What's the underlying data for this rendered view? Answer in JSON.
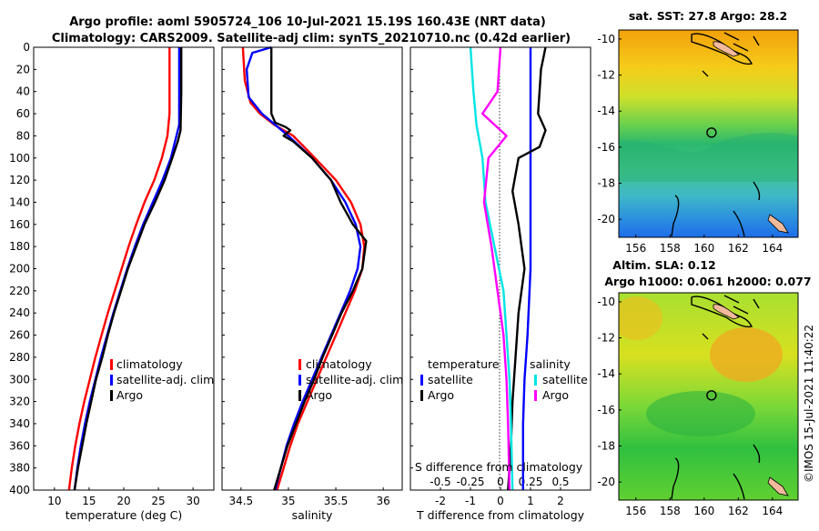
{
  "title": {
    "line1": "Argo profile: aoml 5905724_106 10-Jul-2021 15.19S 160.43E (NRT data)",
    "line2": "Climatology: CARS2009. Satellite-adj clim: synTS_20210710.nc (0.42d earlier)"
  },
  "copyright": "©IMOS 15-Jul-2021 11:40:22",
  "colors": {
    "climatology": "#ff0000",
    "satellite": "#0000ff",
    "argo": "#000000",
    "satellite_salinity": "#00e5e5",
    "argo_salinity": "#ff00ff"
  },
  "chart_data": [
    {
      "type": "line",
      "name": "temperature-profile",
      "xlabel": "temperature (deg C)",
      "xlim": [
        7,
        33
      ],
      "ylim": [
        0,
        400
      ],
      "xticks": [
        "10",
        "15",
        "20",
        "25",
        "30"
      ],
      "yticks": [
        "0",
        "20",
        "40",
        "60",
        "80",
        "100",
        "120",
        "140",
        "160",
        "180",
        "200",
        "220",
        "240",
        "260",
        "280",
        "300",
        "320",
        "340",
        "360",
        "380",
        "400"
      ],
      "legend": [
        "climatology",
        "satellite-adj. clim",
        "Argo"
      ],
      "series": [
        {
          "name": "climatology",
          "color": "#ff0000",
          "points": [
            [
              26.6,
              0
            ],
            [
              26.6,
              40
            ],
            [
              26.6,
              60
            ],
            [
              26.3,
              80
            ],
            [
              25.5,
              100
            ],
            [
              24.4,
              120
            ],
            [
              23,
              140
            ],
            [
              21.8,
              160
            ],
            [
              20.7,
              180
            ],
            [
              19.7,
              200
            ],
            [
              18.7,
              220
            ],
            [
              17.7,
              240
            ],
            [
              16.8,
              260
            ],
            [
              15.9,
              280
            ],
            [
              15.1,
              300
            ],
            [
              14.3,
              320
            ],
            [
              13.6,
              340
            ],
            [
              13,
              360
            ],
            [
              12.5,
              380
            ],
            [
              12.1,
              400
            ]
          ]
        },
        {
          "name": "satellite-adj. clim",
          "color": "#0000ff",
          "points": [
            [
              28,
              0
            ],
            [
              28,
              40
            ],
            [
              28,
              70
            ],
            [
              27.6,
              80
            ],
            [
              26.8,
              100
            ],
            [
              25.6,
              120
            ],
            [
              24.2,
              140
            ],
            [
              22.8,
              160
            ],
            [
              21.6,
              180
            ],
            [
              20.5,
              200
            ],
            [
              19.5,
              220
            ],
            [
              18.5,
              240
            ],
            [
              17.6,
              260
            ],
            [
              16.7,
              280
            ],
            [
              15.9,
              300
            ],
            [
              15.1,
              320
            ],
            [
              14.4,
              340
            ],
            [
              13.8,
              360
            ],
            [
              13.3,
              380
            ],
            [
              12.9,
              400
            ]
          ]
        },
        {
          "name": "Argo",
          "color": "#000000",
          "points": [
            [
              28.3,
              0
            ],
            [
              28.3,
              40
            ],
            [
              28.2,
              75
            ],
            [
              27.8,
              85
            ],
            [
              27,
              100
            ],
            [
              25.9,
              120
            ],
            [
              24.5,
              140
            ],
            [
              23,
              160
            ],
            [
              21.8,
              180
            ],
            [
              20.6,
              200
            ],
            [
              19.6,
              220
            ],
            [
              18.6,
              240
            ],
            [
              17.7,
              260
            ],
            [
              16.9,
              280
            ],
            [
              16,
              300
            ],
            [
              15.3,
              320
            ],
            [
              14.6,
              340
            ],
            [
              14,
              360
            ],
            [
              13.4,
              380
            ],
            [
              12.9,
              400
            ]
          ]
        }
      ]
    },
    {
      "type": "line",
      "name": "salinity-profile",
      "xlabel": "salinity",
      "xlim": [
        34.3,
        36.2
      ],
      "ylim": [
        0,
        400
      ],
      "xticks": [
        "34.5",
        "35",
        "35.5",
        "36"
      ],
      "legend": [
        "climatology",
        "satellite-adj. clim",
        "Argo"
      ],
      "series": [
        {
          "name": "climatology",
          "color": "#ff0000",
          "points": [
            [
              34.52,
              0
            ],
            [
              34.54,
              30
            ],
            [
              34.6,
              50
            ],
            [
              34.7,
              60
            ],
            [
              34.85,
              70
            ],
            [
              35.05,
              80
            ],
            [
              35.28,
              100
            ],
            [
              35.5,
              120
            ],
            [
              35.66,
              140
            ],
            [
              35.76,
              160
            ],
            [
              35.8,
              180
            ],
            [
              35.78,
              200
            ],
            [
              35.7,
              220
            ],
            [
              35.6,
              240
            ],
            [
              35.5,
              260
            ],
            [
              35.4,
              280
            ],
            [
              35.3,
              300
            ],
            [
              35.2,
              320
            ],
            [
              35.1,
              340
            ],
            [
              35.02,
              360
            ],
            [
              34.95,
              380
            ],
            [
              34.88,
              400
            ]
          ]
        },
        {
          "name": "satellite-adj. clim",
          "color": "#0000ff",
          "points": [
            [
              34.82,
              0
            ],
            [
              34.62,
              5
            ],
            [
              34.56,
              20
            ],
            [
              34.58,
              45
            ],
            [
              34.72,
              60
            ],
            [
              35,
              80
            ],
            [
              35.25,
              100
            ],
            [
              35.45,
              120
            ],
            [
              35.6,
              140
            ],
            [
              35.71,
              160
            ],
            [
              35.76,
              180
            ],
            [
              35.73,
              200
            ],
            [
              35.65,
              220
            ],
            [
              35.55,
              240
            ],
            [
              35.45,
              260
            ],
            [
              35.35,
              280
            ],
            [
              35.25,
              300
            ],
            [
              35.15,
              320
            ],
            [
              35.06,
              340
            ],
            [
              34.98,
              360
            ],
            [
              34.92,
              380
            ],
            [
              34.86,
              400
            ]
          ]
        },
        {
          "name": "Argo",
          "color": "#000000",
          "points": [
            [
              34.82,
              0
            ],
            [
              34.82,
              60
            ],
            [
              34.86,
              68
            ],
            [
              34.97,
              72
            ],
            [
              35.02,
              75
            ],
            [
              34.95,
              80
            ],
            [
              35.05,
              85
            ],
            [
              35.25,
              100
            ],
            [
              35.45,
              120
            ],
            [
              35.55,
              140
            ],
            [
              35.68,
              160
            ],
            [
              35.82,
              175
            ],
            [
              35.78,
              200
            ],
            [
              35.68,
              220
            ],
            [
              35.56,
              240
            ],
            [
              35.46,
              260
            ],
            [
              35.36,
              280
            ],
            [
              35.27,
              300
            ],
            [
              35.17,
              320
            ],
            [
              35.08,
              340
            ],
            [
              34.99,
              360
            ],
            [
              34.92,
              380
            ],
            [
              34.85,
              400
            ]
          ]
        }
      ]
    },
    {
      "type": "line",
      "name": "difference-profile",
      "xlabel": "T difference from climatology",
      "xlabel2": "S difference from climatology",
      "xlim": [
        -3,
        3
      ],
      "ylim": [
        0,
        400
      ],
      "xticks": [
        "-2",
        "-1",
        "0",
        "1",
        "2"
      ],
      "xticks2": [
        "-0.5",
        "-0.25",
        "0",
        "0.25",
        "0.5"
      ],
      "legend_headers": [
        "temperature",
        "salinity"
      ],
      "legend": [
        "satellite",
        "Argo",
        "satellite",
        "Argo"
      ],
      "series": [
        {
          "name": "temperature satellite",
          "color": "#0000ff",
          "points": [
            [
              1,
              0
            ],
            [
              1,
              20
            ],
            [
              1,
              60
            ],
            [
              1,
              100
            ],
            [
              1,
              150
            ],
            [
              1,
              200
            ],
            [
              0.9,
              260
            ],
            [
              0.8,
              300
            ],
            [
              0.75,
              340
            ],
            [
              0.75,
              380
            ],
            [
              0.75,
              400
            ]
          ]
        },
        {
          "name": "temperature Argo",
          "color": "#000000",
          "points": [
            [
              1.5,
              0
            ],
            [
              1.35,
              20
            ],
            [
              1.25,
              60
            ],
            [
              1.5,
              75
            ],
            [
              1.3,
              90
            ],
            [
              0.6,
              100
            ],
            [
              0.4,
              130
            ],
            [
              0.6,
              160
            ],
            [
              0.8,
              200
            ],
            [
              0.6,
              240
            ],
            [
              0.5,
              280
            ],
            [
              0.4,
              320
            ],
            [
              0.35,
              360
            ],
            [
              0.25,
              400
            ]
          ]
        },
        {
          "name": "salinity satellite",
          "color": "#00e5e5",
          "points": [
            [
              -1,
              0
            ],
            [
              -0.9,
              40
            ],
            [
              -0.8,
              70
            ],
            [
              -0.6,
              100
            ],
            [
              -0.5,
              140
            ],
            [
              -0.2,
              180
            ],
            [
              0.1,
              220
            ],
            [
              0.2,
              260
            ],
            [
              0.3,
              300
            ],
            [
              0.35,
              340
            ],
            [
              0.4,
              400
            ]
          ]
        },
        {
          "name": "salinity Argo",
          "color": "#ff00ff",
          "points": [
            [
              0,
              0
            ],
            [
              -0.1,
              40
            ],
            [
              -0.6,
              60
            ],
            [
              0.2,
              80
            ],
            [
              -0.4,
              100
            ],
            [
              -0.55,
              140
            ],
            [
              -0.3,
              180
            ],
            [
              -0.1,
              220
            ],
            [
              0.1,
              260
            ],
            [
              0.2,
              300
            ],
            [
              0.25,
              340
            ],
            [
              0.3,
              400
            ]
          ]
        }
      ]
    },
    {
      "type": "heatmap",
      "name": "sst-map",
      "title": "sat. SST: 27.8 Argo: 28.2",
      "xlim": [
        155,
        165.5
      ],
      "ylim": [
        -21,
        -9.5
      ],
      "xticks": [
        "156",
        "158",
        "160",
        "162",
        "164"
      ],
      "yticks": [
        "-10",
        "-12",
        "-14",
        "-16",
        "-18",
        "-20"
      ],
      "argo_position": [
        160.43,
        -15.19
      ]
    },
    {
      "type": "heatmap",
      "name": "sla-map",
      "title": "Altim. SLA: 0.12",
      "subtitle": "Argo h1000: 0.061 h2000: 0.077",
      "xlim": [
        155,
        165.5
      ],
      "ylim": [
        -21,
        -9.5
      ],
      "xticks": [
        "156",
        "158",
        "160",
        "162",
        "164"
      ],
      "yticks": [
        "-10",
        "-12",
        "-14",
        "-16",
        "-18",
        "-20"
      ],
      "argo_position": [
        160.43,
        -15.19
      ]
    }
  ]
}
